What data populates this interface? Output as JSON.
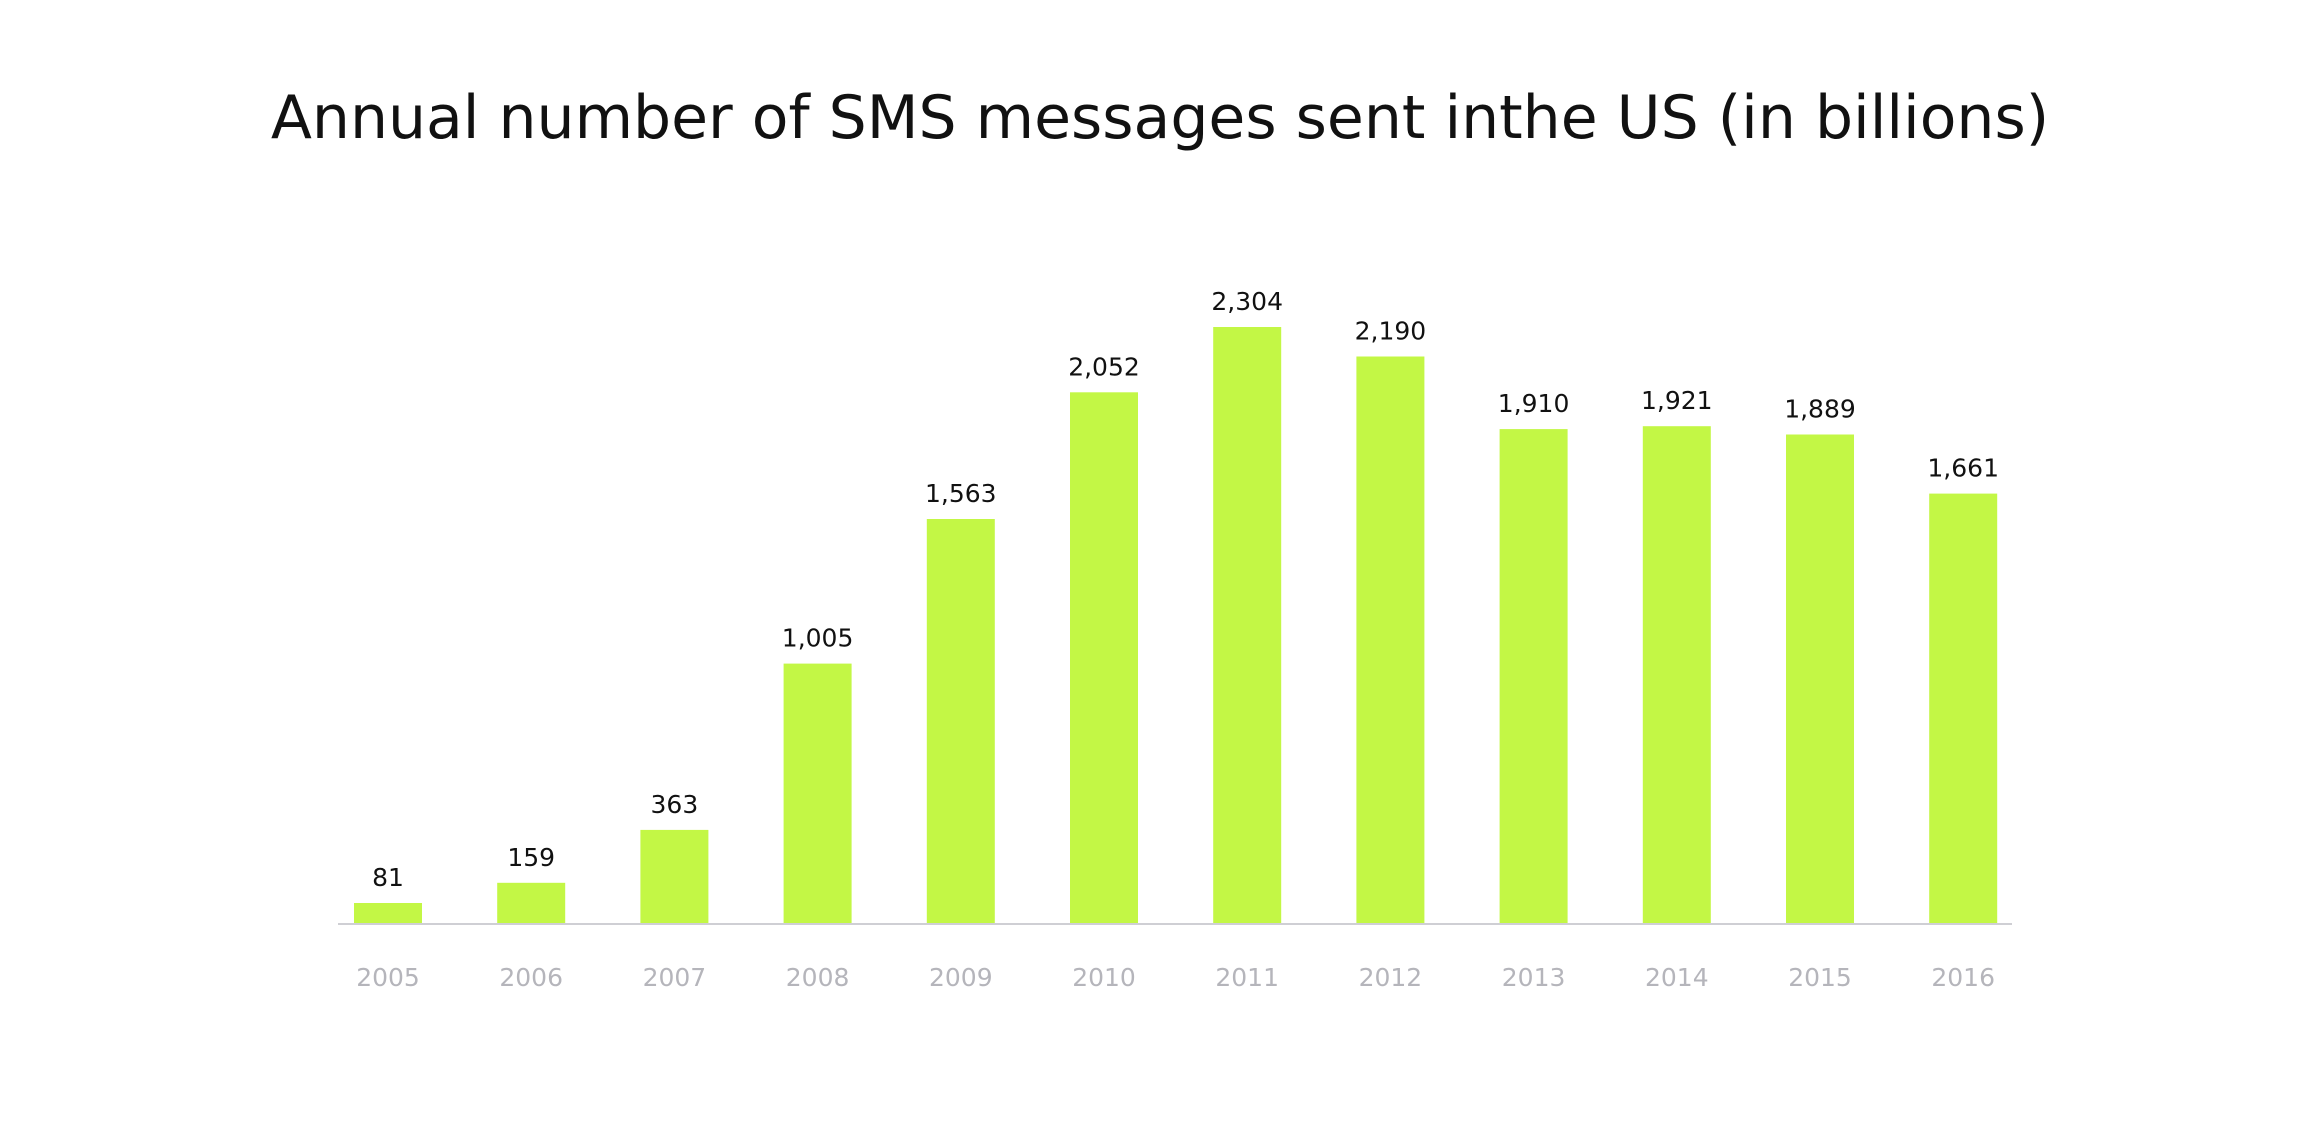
{
  "chart_data": {
    "type": "bar",
    "title": "Annual number of SMS messages sent inthe US (in billions)",
    "xlabel": "",
    "ylabel": "",
    "categories": [
      "2005",
      "2006",
      "2007",
      "2008",
      "2009",
      "2010",
      "2011",
      "2012",
      "2013",
      "2014",
      "2015",
      "2016"
    ],
    "values": [
      81,
      159,
      363,
      1005,
      1563,
      2052,
      2304,
      2190,
      1910,
      1921,
      1889,
      1661
    ],
    "data_labels": [
      "81",
      "159",
      "363",
      "1,005",
      "1,563",
      "2,052",
      "2,304",
      "2,190",
      "1,910",
      "1,921",
      "1,889",
      "1,661"
    ],
    "ylim": [
      0,
      2304
    ],
    "grid": false,
    "legend": "none",
    "colors": {
      "bar": "#c3f745",
      "axis": "#cfcfd4",
      "value_label": "#111111",
      "tick_label": "#b5b5bb"
    }
  }
}
